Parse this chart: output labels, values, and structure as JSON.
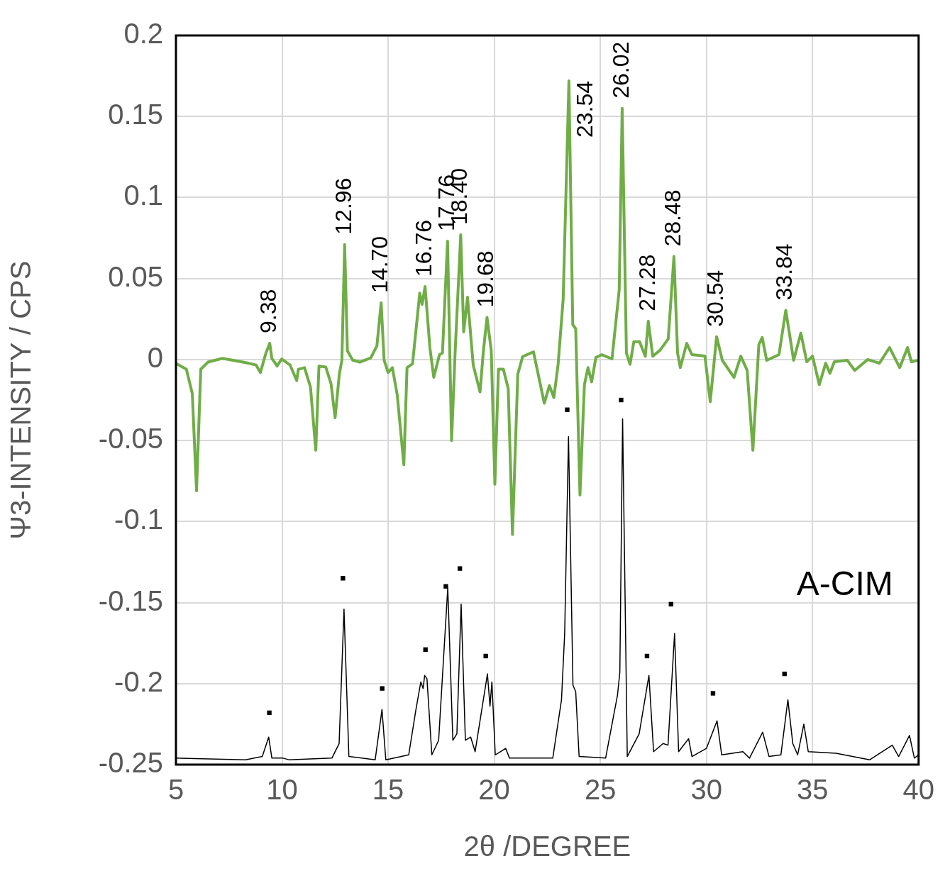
{
  "chart_data": {
    "type": "line",
    "xlabel": "2θ /DEGREE",
    "ylabel": "Ψ3-INTENSITY / CPS",
    "xlim": [
      5,
      40
    ],
    "xticks": [
      5,
      10,
      15,
      20,
      25,
      30,
      35,
      40
    ],
    "ylim": [
      -0.25,
      0.2
    ],
    "yticks": [
      -0.25,
      -0.2,
      -0.15,
      -0.1,
      -0.05,
      0,
      0.05,
      0.1,
      0.15,
      0.2
    ],
    "grid": true,
    "legend": false,
    "marker": "none",
    "line_style": "solid",
    "series": [
      {
        "type": "line",
        "color": "#70ad47",
        "x": [
          5.03,
          5.49,
          5.77,
          5.97,
          6.17,
          6.51,
          7.19,
          8.33,
          8.78,
          8.98,
          9.24,
          9.42,
          9.52,
          9.77,
          9.98,
          10.38,
          10.69,
          10.77,
          11.06,
          11.34,
          11.59,
          11.74,
          12.06,
          12.31,
          12.5,
          12.7,
          12.82,
          12.95,
          13.08,
          13.33,
          13.67,
          14.18,
          14.47,
          14.67,
          14.81,
          15.0,
          15.2,
          15.43,
          15.74,
          15.89,
          16.15,
          16.49,
          16.6,
          16.74,
          16.97,
          17.15,
          17.42,
          17.56,
          17.8,
          17.99,
          18.16,
          18.42,
          18.56,
          18.74,
          19.01,
          19.33,
          19.49,
          19.66,
          19.86,
          20.03,
          20.2,
          20.43,
          20.66,
          20.86,
          21.11,
          21.34,
          21.85,
          22.36,
          22.6,
          22.81,
          23.01,
          23.25,
          23.52,
          23.7,
          23.84,
          24.04,
          24.25,
          24.42,
          24.59,
          24.79,
          25.07,
          25.55,
          25.89,
          26.03,
          26.23,
          26.4,
          26.58,
          26.85,
          27.12,
          27.26,
          27.47,
          27.81,
          28.2,
          28.47,
          28.64,
          28.77,
          29.07,
          29.32,
          29.93,
          30.18,
          30.48,
          30.75,
          31.3,
          31.62,
          31.92,
          32.19,
          32.47,
          32.63,
          32.84,
          33.42,
          33.74,
          34.11,
          34.45,
          34.73,
          35.0,
          35.32,
          35.62,
          35.82,
          36.03,
          36.64,
          36.99,
          37.6,
          38.15,
          38.63,
          39.11,
          39.48,
          39.66,
          40.0
        ],
        "values": [
          -0.0026,
          -0.006,
          -0.021,
          -0.081,
          -0.006,
          -0.0016,
          0.0007,
          -0.002,
          -0.0034,
          -0.008,
          0.004,
          0.01,
          0.0007,
          -0.004,
          0.0003,
          -0.0034,
          -0.013,
          -0.006,
          -0.005,
          -0.017,
          -0.056,
          -0.004,
          -0.0046,
          -0.015,
          -0.036,
          -0.009,
          -0.0004,
          0.071,
          0.0054,
          -0.0004,
          -0.0016,
          0.001,
          0.0084,
          0.035,
          -0.0004,
          -0.008,
          -0.005,
          -0.022,
          -0.065,
          -0.005,
          -0.0026,
          0.041,
          0.034,
          0.045,
          0.007,
          -0.011,
          0.003,
          0.004,
          0.073,
          -0.05,
          0.0054,
          0.077,
          0.017,
          0.0385,
          -0.0034,
          -0.02,
          0.0054,
          0.026,
          0.0054,
          -0.077,
          -0.006,
          -0.006,
          -0.018,
          -0.108,
          -0.009,
          0.0018,
          0.0047,
          -0.027,
          -0.016,
          -0.0235,
          -0.003,
          0.0375,
          0.172,
          0.0216,
          0.019,
          -0.0836,
          -0.0155,
          -0.005,
          -0.0138,
          0.0012,
          0.003,
          0.0004,
          0.043,
          0.155,
          0.004,
          -0.003,
          0.011,
          0.011,
          0.002,
          0.0237,
          0.002,
          0.0057,
          0.0127,
          0.0636,
          0.004,
          -0.005,
          0.01,
          0.003,
          0.0021,
          -0.026,
          0.0141,
          -0.0005,
          -0.011,
          0.0021,
          -0.0067,
          -0.056,
          0.0092,
          0.0136,
          -0.0005,
          0.003,
          0.0304,
          -0.0005,
          0.0163,
          -0.0014,
          0.0021,
          -0.0155,
          -0.0023,
          -0.0085,
          -0.0014,
          -0.0005,
          -0.0067,
          0,
          -0.0023,
          0.0074,
          -0.005,
          0.0074,
          -0.0014,
          -0.0005
        ]
      },
      {
        "type": "line",
        "name": "A-CIM",
        "color": "#000000",
        "x": [
          5.0,
          8.28,
          9.07,
          9.37,
          9.52,
          10.05,
          10.32,
          12.35,
          12.69,
          12.92,
          13.15,
          14.39,
          14.71,
          14.89,
          15.97,
          16.31,
          16.54,
          16.65,
          16.72,
          16.83,
          17.06,
          17.38,
          17.81,
          18.05,
          18.24,
          18.44,
          18.64,
          18.89,
          19.1,
          19.68,
          19.8,
          19.89,
          20.05,
          20.54,
          20.72,
          22.76,
          23.17,
          23.32,
          23.5,
          23.71,
          23.84,
          24.0,
          25.25,
          25.81,
          25.92,
          26.05,
          26.27,
          26.83,
          27.29,
          27.51,
          27.96,
          28.19,
          28.5,
          28.69,
          29.16,
          29.32,
          30.0,
          30.5,
          30.72,
          31.72,
          32.03,
          32.65,
          32.95,
          33.51,
          33.84,
          34.07,
          34.3,
          34.59,
          34.8,
          36.11,
          37.7,
          38.76,
          39.06,
          39.57,
          39.8,
          40.0
        ],
        "values": [
          -0.246,
          -0.247,
          -0.245,
          -0.233,
          -0.246,
          -0.246,
          -0.247,
          -0.246,
          -0.237,
          -0.154,
          -0.245,
          -0.247,
          -0.216,
          -0.247,
          -0.244,
          -0.216,
          -0.199,
          -0.203,
          -0.195,
          -0.197,
          -0.244,
          -0.235,
          -0.141,
          -0.235,
          -0.231,
          -0.151,
          -0.235,
          -0.233,
          -0.242,
          -0.194,
          -0.214,
          -0.199,
          -0.244,
          -0.24,
          -0.246,
          -0.246,
          -0.21,
          -0.169,
          -0.0476,
          -0.201,
          -0.205,
          -0.245,
          -0.246,
          -0.207,
          -0.193,
          -0.0366,
          -0.245,
          -0.231,
          -0.195,
          -0.242,
          -0.237,
          -0.238,
          -0.169,
          -0.242,
          -0.234,
          -0.245,
          -0.24,
          -0.223,
          -0.244,
          -0.242,
          -0.246,
          -0.23,
          -0.245,
          -0.244,
          -0.21,
          -0.237,
          -0.244,
          -0.225,
          -0.242,
          -0.243,
          -0.247,
          -0.238,
          -0.245,
          -0.232,
          -0.246,
          -0.244
        ]
      },
      {
        "type": "scatter",
        "color": "#000000",
        "marker": "square",
        "x": [
          9.4,
          12.87,
          14.72,
          16.76,
          17.72,
          18.38,
          19.6,
          23.44,
          25.98,
          27.2,
          28.33,
          30.31,
          33.68
        ],
        "values": [
          -0.218,
          -0.135,
          -0.203,
          -0.179,
          -0.14,
          -0.129,
          -0.183,
          -0.031,
          -0.025,
          -0.183,
          -0.151,
          -0.206,
          -0.194
        ]
      }
    ],
    "annotations": [
      {
        "text": "9.38",
        "x": 9.42,
        "y": 0.01
      },
      {
        "text": "12.96",
        "x": 12.95,
        "y": 0.071
      },
      {
        "text": "14.70",
        "x": 14.67,
        "y": 0.035
      },
      {
        "text": "16.76",
        "x": 16.74,
        "y": 0.045
      },
      {
        "text": "17.76",
        "x": 17.8,
        "y": 0.073
      },
      {
        "text": "18.40",
        "x": 18.42,
        "y": 0.077
      },
      {
        "text": "19.68",
        "x": 19.66,
        "y": 0.026
      },
      {
        "text": "23.54",
        "x": 23.52,
        "y": 0.172
      },
      {
        "text": "26.02",
        "x": 26.03,
        "y": 0.155
      },
      {
        "text": "27.28",
        "x": 27.26,
        "y": 0.0237
      },
      {
        "text": "28.48",
        "x": 28.47,
        "y": 0.0636
      },
      {
        "text": "30.54",
        "x": 30.48,
        "y": 0.0141
      },
      {
        "text": "33.84",
        "x": 33.74,
        "y": 0.0304
      }
    ]
  }
}
